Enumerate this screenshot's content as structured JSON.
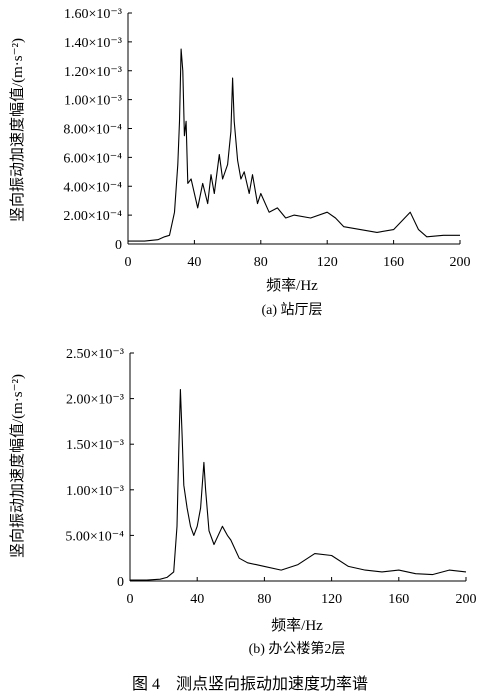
{
  "figure_caption": "图 4　测点竖向振动加速度功率谱",
  "chart_data": [
    {
      "type": "line",
      "caption": "(a) 站厅层",
      "xlabel": "频率/Hz",
      "ylabel": "竖向振动加速度幅值/(m·s⁻²)",
      "xlim": [
        0,
        200
      ],
      "ylim": [
        0,
        0.0016
      ],
      "x_ticks": [
        "0",
        "40",
        "80",
        "120",
        "160",
        "200"
      ],
      "y_ticks": [
        "0",
        "2.00×10⁻⁴",
        "4.00×10⁻⁴",
        "6.00×10⁻⁴",
        "8.00×10⁻⁴",
        "1.00×10⁻³",
        "1.20×10⁻³",
        "1.40×10⁻³",
        "1.60×10⁻³"
      ],
      "grid": false,
      "series": [
        {
          "values": [
            [
              0,
              2e-05
            ],
            [
              10,
              2e-05
            ],
            [
              18,
              3e-05
            ],
            [
              22,
              5e-05
            ],
            [
              25,
              6e-05
            ],
            [
              28,
              0.00022
            ],
            [
              30,
              0.00055
            ],
            [
              31,
              0.00085
            ],
            [
              32,
              0.00135
            ],
            [
              33,
              0.0012
            ],
            [
              34,
              0.00075
            ],
            [
              35,
              0.00085
            ],
            [
              36,
              0.00042
            ],
            [
              38,
              0.00045
            ],
            [
              40,
              0.00035
            ],
            [
              42,
              0.00025
            ],
            [
              45,
              0.00042
            ],
            [
              48,
              0.00028
            ],
            [
              50,
              0.00048
            ],
            [
              52,
              0.00035
            ],
            [
              55,
              0.00062
            ],
            [
              57,
              0.00045
            ],
            [
              60,
              0.00055
            ],
            [
              62,
              0.00078
            ],
            [
              63,
              0.00115
            ],
            [
              64,
              0.00085
            ],
            [
              66,
              0.00058
            ],
            [
              68,
              0.00045
            ],
            [
              70,
              0.0005
            ],
            [
              73,
              0.00035
            ],
            [
              75,
              0.00048
            ],
            [
              78,
              0.00028
            ],
            [
              80,
              0.00035
            ],
            [
              85,
              0.00022
            ],
            [
              90,
              0.00025
            ],
            [
              95,
              0.00018
            ],
            [
              100,
              0.0002
            ],
            [
              110,
              0.00018
            ],
            [
              120,
              0.00022
            ],
            [
              125,
              0.00018
            ],
            [
              130,
              0.00012
            ],
            [
              140,
              0.0001
            ],
            [
              150,
              8e-05
            ],
            [
              160,
              0.0001
            ],
            [
              170,
              0.00022
            ],
            [
              175,
              0.0001
            ],
            [
              180,
              5e-05
            ],
            [
              190,
              6e-05
            ],
            [
              200,
              6e-05
            ]
          ]
        }
      ]
    },
    {
      "type": "line",
      "caption": "(b) 办公楼第2层",
      "xlabel": "频率/Hz",
      "ylabel": "竖向振动加速度幅值/(m·s⁻²)",
      "xlim": [
        0,
        200
      ],
      "ylim": [
        0,
        0.0025
      ],
      "x_ticks": [
        "0",
        "40",
        "80",
        "120",
        "160",
        "200"
      ],
      "y_ticks": [
        "0",
        "5.00×10⁻⁴",
        "1.00×10⁻³",
        "1.50×10⁻³",
        "2.00×10⁻³",
        "2.50×10⁻³"
      ],
      "grid": false,
      "series": [
        {
          "values": [
            [
              0,
              1e-05
            ],
            [
              10,
              1e-05
            ],
            [
              18,
              2e-05
            ],
            [
              22,
              4e-05
            ],
            [
              26,
              0.0001
            ],
            [
              28,
              0.0006
            ],
            [
              29,
              0.0014
            ],
            [
              30,
              0.0021
            ],
            [
              31,
              0.0016
            ],
            [
              32,
              0.00105
            ],
            [
              34,
              0.0008
            ],
            [
              36,
              0.0006
            ],
            [
              38,
              0.0005
            ],
            [
              40,
              0.0006
            ],
            [
              42,
              0.0008
            ],
            [
              44,
              0.0013
            ],
            [
              45,
              0.001
            ],
            [
              47,
              0.00055
            ],
            [
              50,
              0.0004
            ],
            [
              55,
              0.0006
            ],
            [
              58,
              0.0005
            ],
            [
              60,
              0.00045
            ],
            [
              65,
              0.00025
            ],
            [
              70,
              0.0002
            ],
            [
              75,
              0.00018
            ],
            [
              80,
              0.00016
            ],
            [
              90,
              0.00012
            ],
            [
              100,
              0.00018
            ],
            [
              110,
              0.0003
            ],
            [
              120,
              0.00028
            ],
            [
              130,
              0.00016
            ],
            [
              140,
              0.00012
            ],
            [
              150,
              0.0001
            ],
            [
              160,
              0.00012
            ],
            [
              170,
              8e-05
            ],
            [
              180,
              7e-05
            ],
            [
              190,
              0.00012
            ],
            [
              200,
              0.0001
            ]
          ]
        }
      ]
    }
  ]
}
